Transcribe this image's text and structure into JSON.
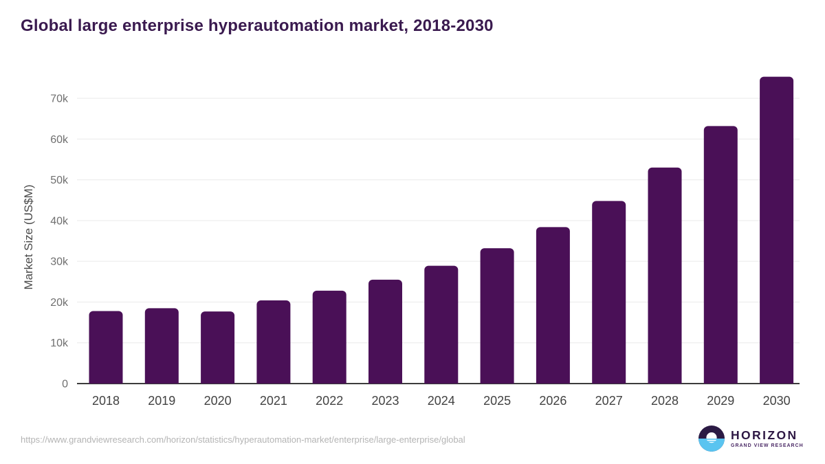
{
  "title": "Global large enterprise hyperautomation market, 2018-2030",
  "chart_data": {
    "type": "bar",
    "title": "Global large enterprise hyperautomation market, 2018-2030",
    "categories": [
      "2018",
      "2019",
      "2020",
      "2021",
      "2022",
      "2023",
      "2024",
      "2025",
      "2026",
      "2027",
      "2028",
      "2029",
      "2030"
    ],
    "values": [
      17800,
      18500,
      17700,
      20400,
      22800,
      25500,
      28900,
      33200,
      38400,
      44800,
      53000,
      63200,
      75300
    ],
    "xlabel": "",
    "ylabel": "Market Size (US$M)",
    "ylim": [
      0,
      70000
    ],
    "yticks": [
      0,
      10000,
      20000,
      30000,
      40000,
      50000,
      60000,
      70000
    ],
    "ytick_labels": [
      "0",
      "10k",
      "20k",
      "30k",
      "40k",
      "50k",
      "60k",
      "70k"
    ],
    "grid": true,
    "legend": null,
    "bar_color": "#4a1057"
  },
  "colors": {
    "bar": "#4a1057",
    "title": "#3a1a4f",
    "gridline": "#eaeaea",
    "axis_line": "#3c3c3c",
    "ytick_text": "#6f6f6f",
    "xtick_text": "#424242",
    "logo_purple": "#2e1844",
    "logo_blue": "#5ac4f0"
  },
  "footer": {
    "source_url": "https://www.grandviewresearch.com/horizon/statistics/hyperautomation-market/enterprise/large-enterprise/global",
    "logo": {
      "name": "HORIZON",
      "subtitle": "GRAND VIEW RESEARCH"
    }
  }
}
